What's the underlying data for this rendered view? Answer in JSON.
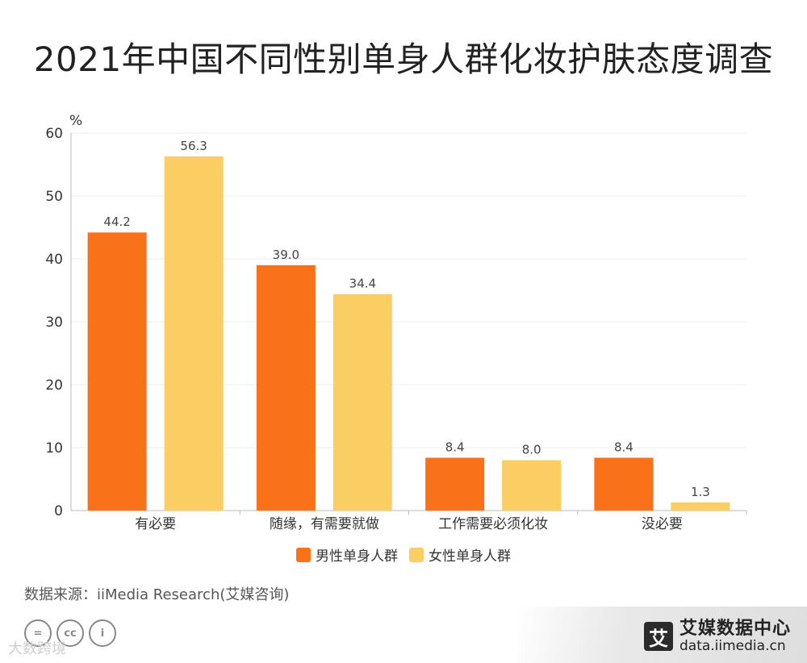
{
  "title": "2021年中国不同性别单身人群化妆护肤态度调查",
  "source": "数据来源：iiMedia Research(艾媒咨询)",
  "brand": {
    "logo_char": "艾",
    "name": "艾媒数据中心",
    "url": "data.iimedia.cn"
  },
  "watermark": "大数跨境",
  "license_icons": [
    "=",
    "cc",
    "i"
  ],
  "colors": {
    "male": "#F97219",
    "female": "#FBCE63"
  },
  "chart_data": {
    "type": "bar",
    "title": "2021年中国不同性别单身人群化妆护肤态度调查",
    "ylabel": "%",
    "xlabel": "",
    "ylim": [
      0,
      60
    ],
    "yticks": [
      0,
      10,
      20,
      30,
      40,
      50,
      60
    ],
    "categories": [
      "有必要",
      "随缘，有需要就做",
      "工作需要必须化妆",
      "没必要"
    ],
    "series": [
      {
        "name": "男性单身人群",
        "values": [
          44.2,
          39.0,
          8.4,
          8.4
        ],
        "labels": [
          "44.2",
          "39.0",
          "8.4",
          "8.4"
        ]
      },
      {
        "name": "女性单身人群",
        "values": [
          56.3,
          34.4,
          8.0,
          1.3
        ],
        "labels": [
          "56.3",
          "34.4",
          "8.0",
          "1.3"
        ]
      }
    ],
    "legend_position": "bottom",
    "grid": true
  }
}
